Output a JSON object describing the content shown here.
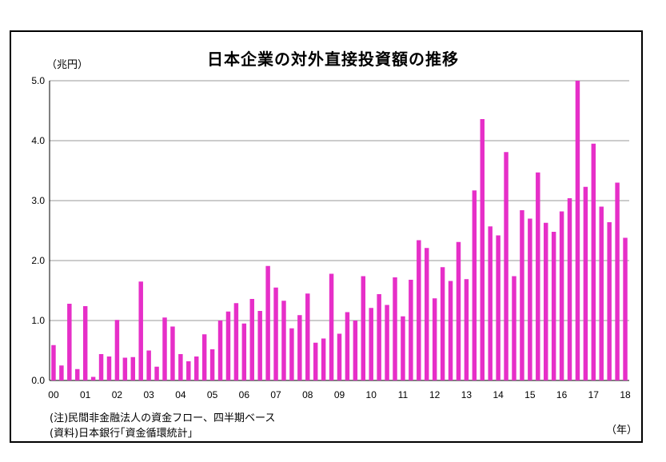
{
  "chart_data": {
    "type": "bar",
    "title": "日本企業の対外直接投資額の推移",
    "ylabel": "（兆円）",
    "xlabel": "（年）",
    "ylim": [
      0,
      5.0
    ],
    "yticks": [
      "0.0",
      "1.0",
      "2.0",
      "3.0",
      "4.0",
      "5.0"
    ],
    "xtick_labels": [
      "00",
      "01",
      "02",
      "03",
      "04",
      "05",
      "06",
      "07",
      "08",
      "09",
      "10",
      "11",
      "12",
      "13",
      "14",
      "15",
      "16",
      "17",
      "18"
    ],
    "grid": true,
    "bar_color": "#e62fc8",
    "values": [
      0.59,
      0.25,
      1.28,
      0.19,
      1.24,
      0.06,
      0.44,
      0.4,
      1.01,
      0.38,
      0.39,
      1.65,
      0.5,
      0.23,
      1.05,
      0.9,
      0.44,
      0.32,
      0.4,
      0.77,
      0.52,
      1.0,
      1.15,
      1.29,
      0.95,
      1.36,
      1.16,
      1.91,
      1.55,
      1.33,
      0.87,
      1.09,
      1.45,
      0.63,
      0.7,
      1.78,
      0.78,
      1.14,
      1.0,
      1.74,
      1.21,
      1.44,
      1.26,
      1.72,
      1.07,
      1.68,
      2.34,
      2.21,
      1.37,
      1.89,
      1.66,
      2.31,
      1.69,
      3.17,
      4.36,
      2.57,
      2.42,
      3.81,
      1.74,
      2.84,
      2.7,
      3.47,
      2.63,
      2.48,
      2.82,
      3.04,
      5.0,
      3.23,
      3.95,
      2.9,
      2.64,
      3.3,
      2.38
    ]
  },
  "notes": {
    "note1": "(注)民間非金融法人の資金フロー、四半期ベース",
    "note2": "(資料)日本銀行｢資金循環統計｣"
  }
}
